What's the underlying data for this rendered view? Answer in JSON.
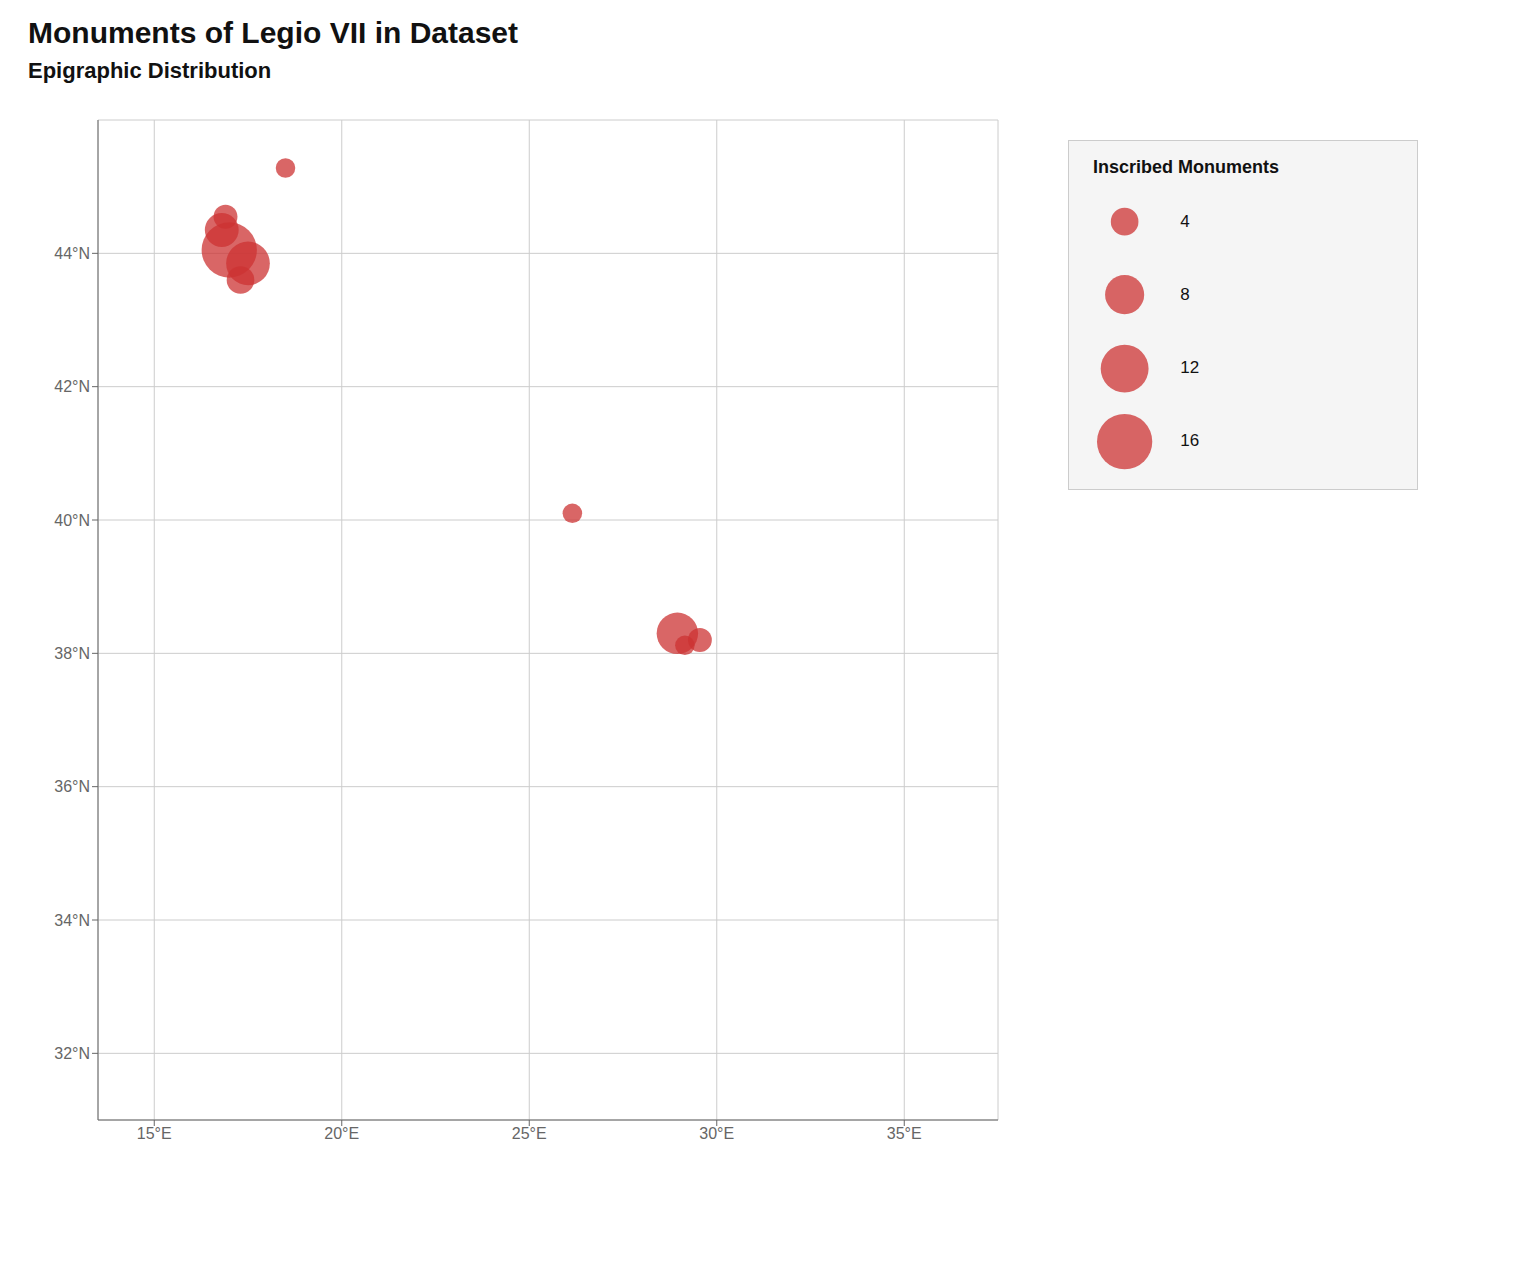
{
  "chart_data": {
    "type": "bubble",
    "title": "Monuments of Legio VII in Dataset",
    "subtitle": "Epigraphic Distribution",
    "x": [
      17.0,
      17.5,
      16.8,
      17.3,
      16.9,
      18.5,
      26.15,
      28.95,
      29.55,
      29.15
    ],
    "values": [
      44.05,
      43.85,
      44.35,
      43.6,
      44.55,
      45.28,
      40.1,
      38.3,
      38.2,
      38.12
    ],
    "sizes": [
      16,
      10,
      6,
      4,
      3,
      2,
      2,
      9,
      3,
      2
    ],
    "color": "#cc3333",
    "xlim": [
      13.5,
      37.5
    ],
    "ylim": [
      31.0,
      46.0
    ],
    "xticks": [
      {
        "value": 15,
        "label": "15°E"
      },
      {
        "value": 20,
        "label": "20°E"
      },
      {
        "value": 25,
        "label": "25°E"
      },
      {
        "value": 30,
        "label": "30°E"
      },
      {
        "value": 35,
        "label": "35°E"
      }
    ],
    "yticks": [
      {
        "value": 32,
        "label": "32°N"
      },
      {
        "value": 34,
        "label": "34°N"
      },
      {
        "value": 36,
        "label": "36°N"
      },
      {
        "value": 38,
        "label": "38°N"
      },
      {
        "value": 40,
        "label": "40°N"
      },
      {
        "value": 42,
        "label": "42°N"
      },
      {
        "value": 44,
        "label": "44°N"
      }
    ],
    "grid": true,
    "legend": "right",
    "size_legend": {
      "title": "Inscribed Monuments",
      "values": [
        4,
        8,
        12,
        16
      ]
    }
  }
}
